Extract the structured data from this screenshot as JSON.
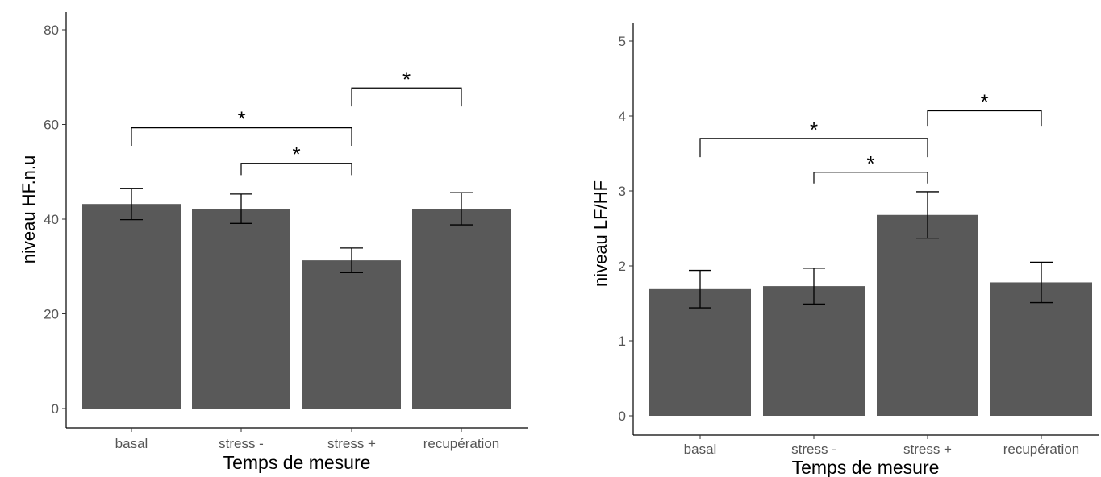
{
  "chart_data": [
    {
      "type": "bar",
      "xlabel": "Temps de mesure",
      "ylabel": "niveau HF.n.u",
      "categories": [
        "basal",
        "stress -",
        "stress +",
        "recupération"
      ],
      "values": [
        43.2,
        42.2,
        31.3,
        42.2
      ],
      "error": [
        3.3,
        3.1,
        2.6,
        3.4
      ],
      "ylim": [
        0,
        84
      ],
      "yticks": [
        0,
        20,
        40,
        60,
        80
      ],
      "tick_labels": [
        "0",
        "20",
        "40",
        "60",
        "80"
      ],
      "bar_color": "#595959",
      "grid": false,
      "significance": [
        {
          "from": 0,
          "to": 2,
          "y": 59.3,
          "tip": 55.5,
          "label": "*"
        },
        {
          "from": 1,
          "to": 2,
          "y": 51.8,
          "tip": 49.3,
          "label": "*"
        },
        {
          "from": 2,
          "to": 3,
          "y": 67.7,
          "tip": 63.8,
          "label": "*"
        }
      ]
    },
    {
      "type": "bar",
      "xlabel": "Temps de mesure",
      "ylabel": "niveau LF/HF",
      "categories": [
        "basal",
        "stress -",
        "stress +",
        "recupération"
      ],
      "values": [
        1.69,
        1.73,
        2.68,
        1.78
      ],
      "error": [
        0.25,
        0.24,
        0.31,
        0.27
      ],
      "ylim": [
        0,
        5.25
      ],
      "yticks": [
        0,
        1,
        2,
        3,
        4,
        5
      ],
      "tick_labels": [
        "0",
        "1",
        "2",
        "3",
        "4",
        "5"
      ],
      "bar_color": "#595959",
      "grid": false,
      "significance": [
        {
          "from": 0,
          "to": 2,
          "y": 3.7,
          "tip": 3.45,
          "label": "*"
        },
        {
          "from": 1,
          "to": 2,
          "y": 3.25,
          "tip": 3.1,
          "label": "*"
        },
        {
          "from": 2,
          "to": 3,
          "y": 4.07,
          "tip": 3.87,
          "label": "*"
        }
      ]
    }
  ]
}
